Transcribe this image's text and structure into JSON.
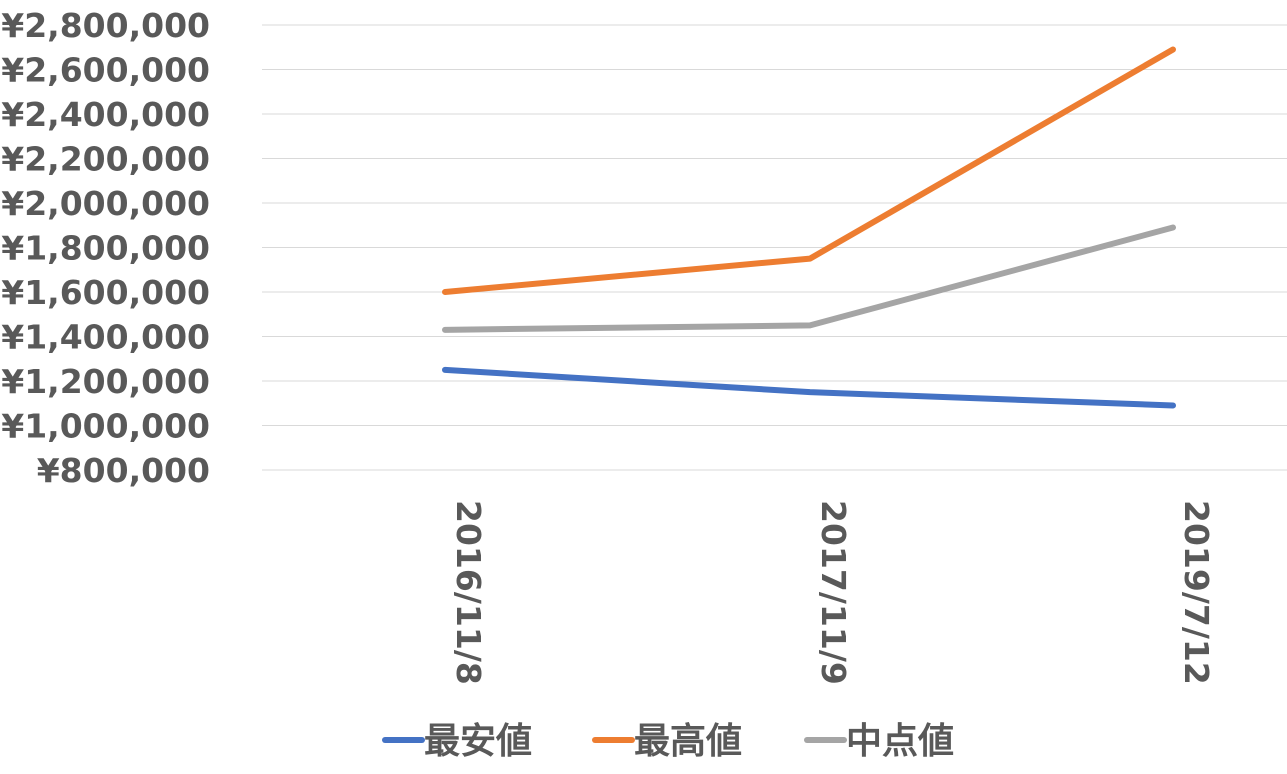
{
  "chart_data": {
    "type": "line",
    "title": "",
    "xlabel": "",
    "ylabel": "",
    "categories": [
      "2016/11/8",
      "2017/11/9",
      "2019/7/12"
    ],
    "ylim": [
      800000,
      2800000
    ],
    "y_ticks": [
      800000,
      1000000,
      1200000,
      1400000,
      1600000,
      1800000,
      2000000,
      2200000,
      2400000,
      2600000,
      2800000
    ],
    "y_tick_labels": [
      "¥800,000",
      "¥1,000,000",
      "¥1,200,000",
      "¥1,400,000",
      "¥1,600,000",
      "¥1,800,000",
      "¥2,000,000",
      "¥2,200,000",
      "¥2,400,000",
      "¥2,600,000",
      "¥2,800,000"
    ],
    "grid": true,
    "legend_position": "bottom",
    "series": [
      {
        "name": "最安値",
        "color": "#4472c4",
        "values": [
          1250000,
          1150000,
          1090000
        ]
      },
      {
        "name": "最高値",
        "color": "#ed7d31",
        "values": [
          1600000,
          1750000,
          2690000
        ]
      },
      {
        "name": "中点値",
        "color": "#a5a5a5",
        "values": [
          1430000,
          1450000,
          1890000
        ]
      }
    ]
  }
}
